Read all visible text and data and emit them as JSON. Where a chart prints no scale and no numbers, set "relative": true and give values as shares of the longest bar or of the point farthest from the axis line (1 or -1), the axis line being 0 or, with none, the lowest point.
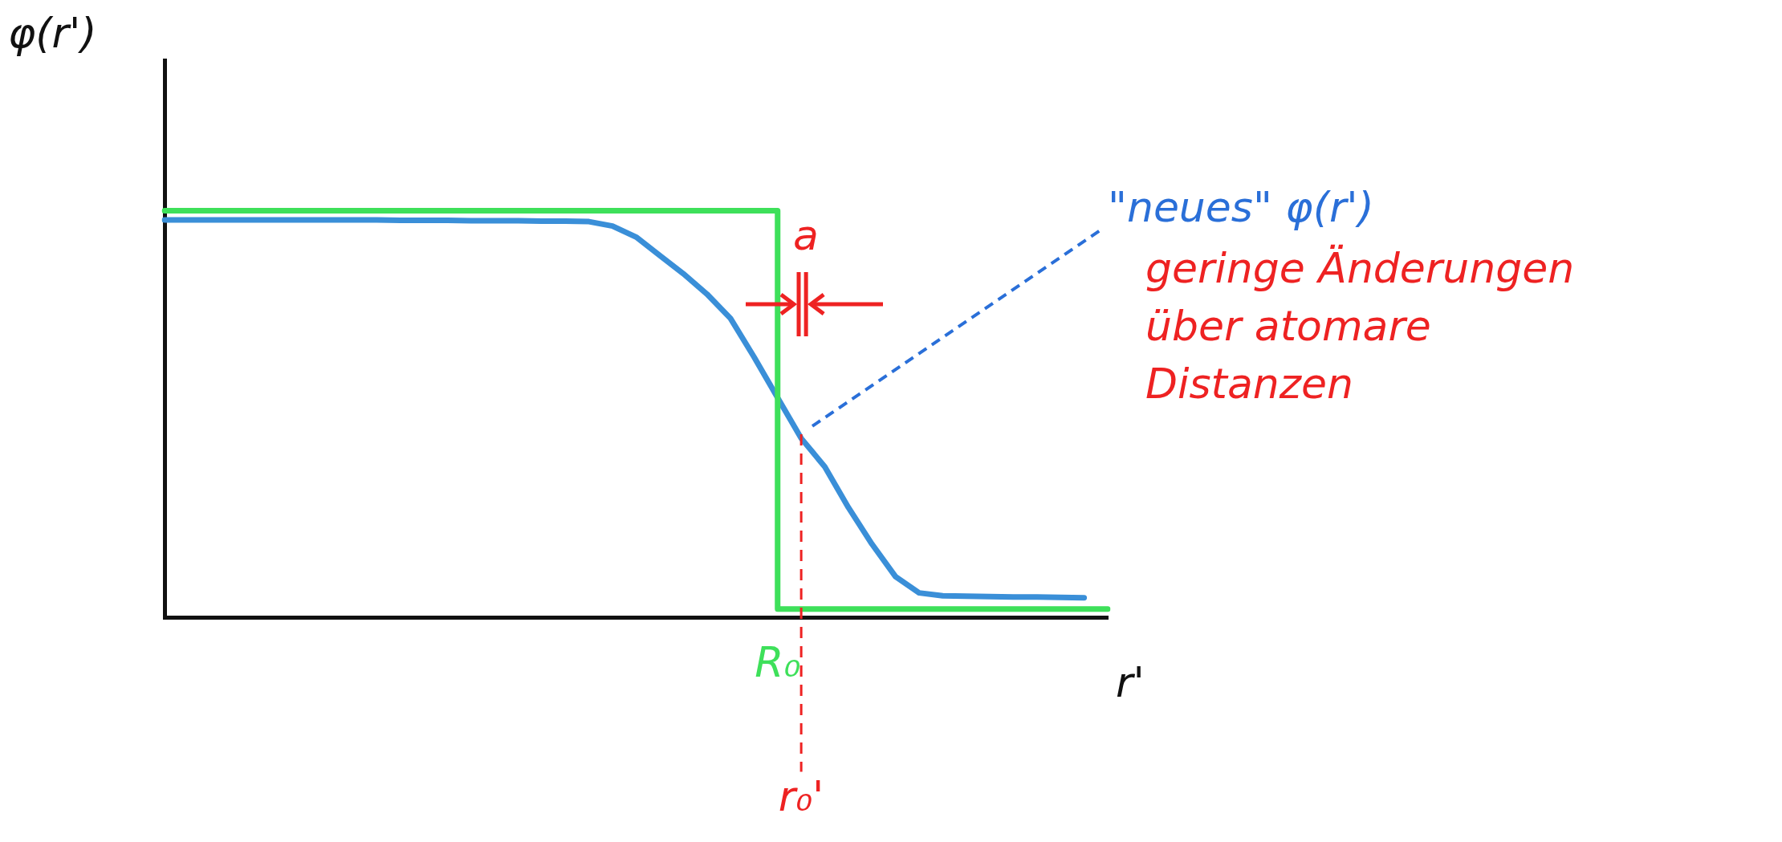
{
  "chart_data": {
    "type": "line",
    "relative": true,
    "xlabel": "r'",
    "ylabel": "φ(r')",
    "legend": false,
    "grid": false,
    "tick_labels": false,
    "categories": [
      null,
      null,
      null,
      null,
      null,
      null,
      null,
      null,
      null,
      null,
      null,
      null,
      null,
      null,
      null,
      null,
      null,
      null,
      null,
      null,
      null,
      null,
      null,
      null,
      null,
      null,
      null,
      null,
      null,
      null,
      null,
      null,
      null,
      null,
      null,
      null,
      null,
      null,
      null,
      null,
      null
    ],
    "series": [
      {
        "type": "step",
        "color": "#3ee05a",
        "values": [
          1,
          1,
          1,
          1,
          1,
          1,
          1,
          1,
          1,
          1,
          1,
          1,
          1,
          1,
          1,
          1,
          1,
          1,
          1,
          1,
          1,
          1,
          1,
          1,
          1,
          1,
          0.02,
          0.02,
          0.02,
          0.02,
          0.02,
          0.02,
          0.02,
          0.02,
          0.02,
          0.02,
          0.02,
          0.02,
          0.02,
          0.02,
          0.02
        ]
      },
      {
        "color": "#3a8fd8",
        "values": [
          0.977,
          0.977,
          0.977,
          0.977,
          0.977,
          0.977,
          0.977,
          0.977,
          0.977,
          0.977,
          0.976,
          0.976,
          0.976,
          0.975,
          0.975,
          0.975,
          0.974,
          0.974,
          0.973,
          0.962,
          0.935,
          0.89,
          0.845,
          0.795,
          0.735,
          0.64,
          0.54,
          0.44,
          0.37,
          0.27,
          0.18,
          0.1,
          0.06,
          0.053,
          0.052,
          0.051,
          0.05,
          0.05,
          0.049,
          0.048,
          null
        ]
      }
    ],
    "annotations": [
      "a",
      "\"neues\" φ(r')",
      "geringe Änderungen über atomare Distanzen",
      "R₀",
      "r₀'"
    ]
  }
}
